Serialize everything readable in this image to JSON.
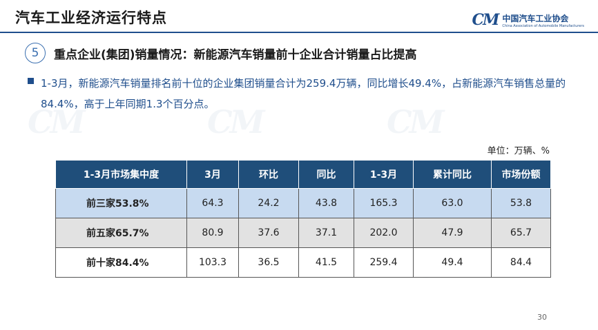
{
  "header": {
    "title": "汽车工业经济运行特点",
    "logo_mark": "CM",
    "logo_cn": "中国汽车工业协会",
    "logo_en": "China Association of Automobile Manufacturers"
  },
  "section": {
    "number": "5",
    "title": "重点企业(集团)销量情况：新能源汽车销量前十企业合计销量占比提高"
  },
  "bullet": "1-3月，新能源汽车销量排名前十位的企业集团销量合计为259.4万辆，同比增长49.4%，占新能源汽车销售总量的84.4%，高于上年同期1.3个百分点。",
  "unit": "单位：万辆、%",
  "table": {
    "headers": [
      "1-3月市场集中度",
      "3月",
      "环比",
      "同比",
      "1-3月",
      "累计同比",
      "市场份额"
    ],
    "rows": [
      [
        "前三家53.8%",
        "64.3",
        "24.2",
        "43.8",
        "165.3",
        "63.0",
        "53.8"
      ],
      [
        "前五家65.7%",
        "80.9",
        "37.6",
        "37.1",
        "202.0",
        "47.9",
        "65.7"
      ],
      [
        "前十家84.4%",
        "103.3",
        "36.5",
        "41.5",
        "259.4",
        "49.4",
        "84.4"
      ]
    ]
  },
  "page_number": "30",
  "watermark": "CM"
}
